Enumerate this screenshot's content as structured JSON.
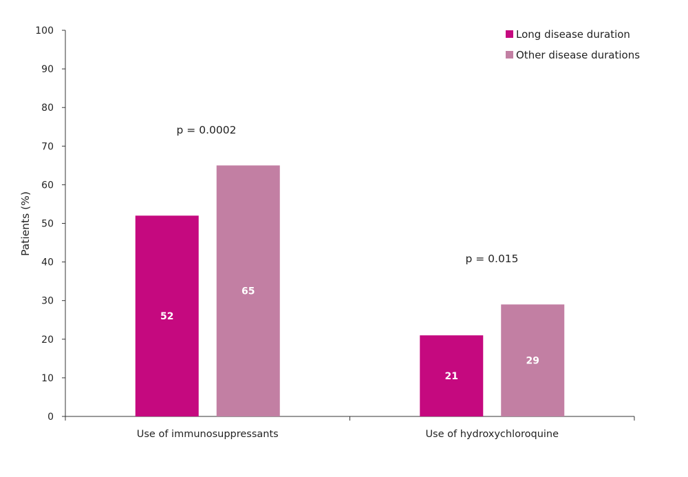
{
  "chart_data": {
    "type": "bar",
    "title": "",
    "xlabel": "",
    "ylabel": "Patients (%)",
    "ylim": [
      0,
      100
    ],
    "yticks": [
      0,
      10,
      20,
      30,
      40,
      50,
      60,
      70,
      80,
      90,
      100
    ],
    "categories": [
      "Use of immunosuppressants",
      "Use of hydroxychloroquine"
    ],
    "series": [
      {
        "name": "Long disease duration",
        "color": "#c5097f",
        "values": [
          52,
          21
        ]
      },
      {
        "name": "Other disease durations",
        "color": "#c27fa3",
        "values": [
          65,
          29
        ]
      }
    ],
    "annotations": [
      "p = 0.0002",
      "p = 0.015"
    ],
    "legend_placement": "top-right",
    "grid": false
  }
}
